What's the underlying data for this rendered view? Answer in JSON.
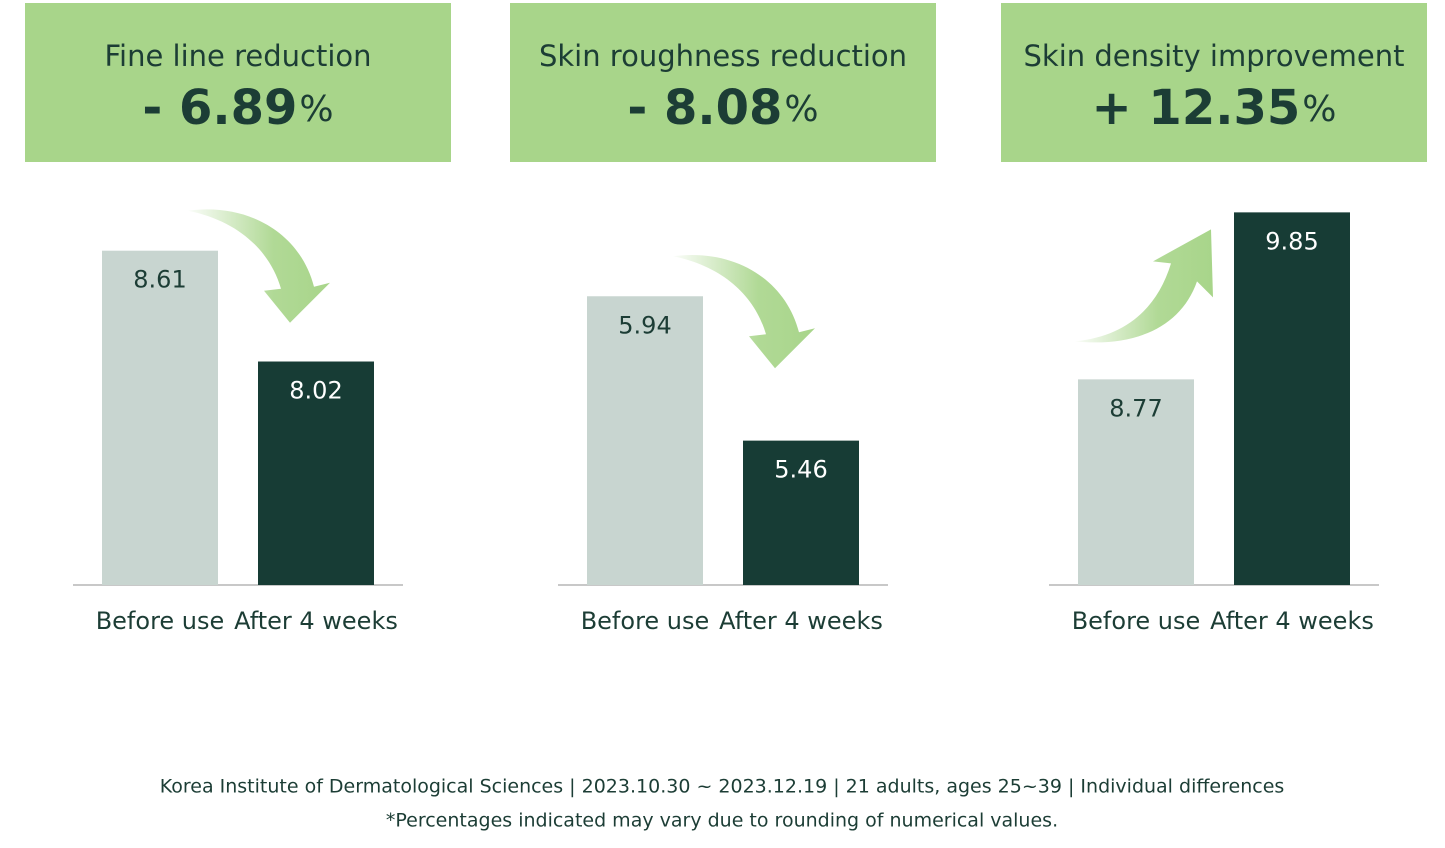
{
  "chart_data": [
    {
      "type": "bar",
      "title": "Fine line reduction",
      "change_label": "- 6.89",
      "change_unit": "%",
      "categories": [
        "Before use",
        "After 4 weeks"
      ],
      "values": [
        8.61,
        8.02
      ],
      "colors": [
        "#c8d5d0",
        "#173c35"
      ],
      "ylim": [
        6.83,
        8.88
      ]
    },
    {
      "type": "bar",
      "title": "Skin roughness reduction",
      "change_label": "- 8.08",
      "change_unit": "%",
      "categories": [
        "Before use",
        "After 4 weeks"
      ],
      "values": [
        5.94,
        5.46
      ],
      "colors": [
        "#c8d5d0",
        "#173c35"
      ],
      "ylim": [
        4.98,
        6.26
      ]
    },
    {
      "type": "bar",
      "title": "Skin density improvement",
      "change_label": "+ 12.35",
      "change_unit": "%",
      "categories": [
        "Before use",
        "After 4 weeks"
      ],
      "values": [
        8.77,
        9.85
      ],
      "colors": [
        "#c8d5d0",
        "#173c35"
      ],
      "ylim": [
        7.44,
        9.93
      ]
    }
  ],
  "footer": {
    "source": "Korea Institute of Dermatological Sciences | 2023.10.30 ~ 2023.12.19 | 21 adults, ages 25~39 | Individual differences",
    "note": "*Percentages indicated may vary due to rounding of numerical values."
  }
}
